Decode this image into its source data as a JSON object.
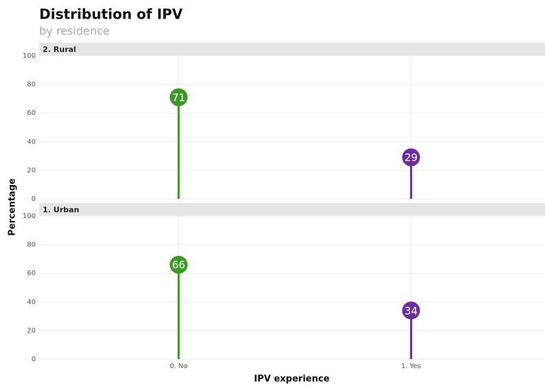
{
  "chart_data": {
    "type": "lollipop",
    "title": "Distribution of IPV",
    "subtitle": "by residence",
    "x_label": "IPV experience",
    "y_label": "Percentage",
    "categories": [
      "0. No",
      "1. Yes"
    ],
    "colors": [
      "#3a9a24",
      "#6b2f9c"
    ],
    "ylim": [
      0,
      100
    ],
    "yticks": [
      0,
      20,
      40,
      60,
      80,
      100
    ],
    "grid": true,
    "facets": [
      {
        "name": "2. Rural",
        "values": [
          71,
          29
        ]
      },
      {
        "name": "1. Urban",
        "values": [
          66,
          34
        ]
      }
    ]
  }
}
